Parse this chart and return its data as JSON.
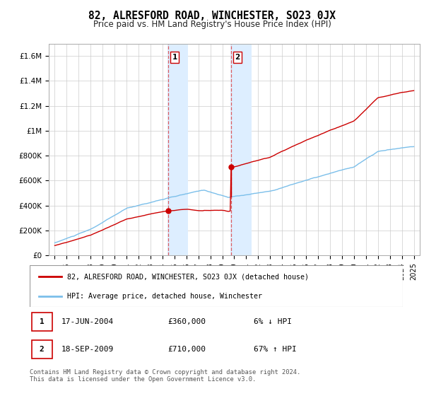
{
  "title": "82, ALRESFORD ROAD, WINCHESTER, SO23 0JX",
  "subtitle": "Price paid vs. HM Land Registry's House Price Index (HPI)",
  "sale1_date": "17-JUN-2004",
  "sale1_price": 360000,
  "sale1_hpi": "6% ↓ HPI",
  "sale2_date": "18-SEP-2009",
  "sale2_price": 710000,
  "sale2_hpi": "67% ↑ HPI",
  "legend_line1": "82, ALRESFORD ROAD, WINCHESTER, SO23 0JX (detached house)",
  "legend_line2": "HPI: Average price, detached house, Winchester",
  "footer": "Contains HM Land Registry data © Crown copyright and database right 2024.\nThis data is licensed under the Open Government Licence v3.0.",
  "hpi_color": "#7bbfea",
  "price_color": "#cc0000",
  "shaded_color": "#ddeeff",
  "ylim": [
    0,
    1700000
  ],
  "yticks": [
    0,
    200000,
    400000,
    600000,
    800000,
    1000000,
    1200000,
    1400000,
    1600000
  ],
  "ytick_labels": [
    "£0",
    "£200K",
    "£400K",
    "£600K",
    "£800K",
    "£1M",
    "£1.2M",
    "£1.4M",
    "£1.6M"
  ],
  "sale1_x": 2004.46,
  "sale2_x": 2009.72,
  "xmin": 1994.5,
  "xmax": 2025.5
}
